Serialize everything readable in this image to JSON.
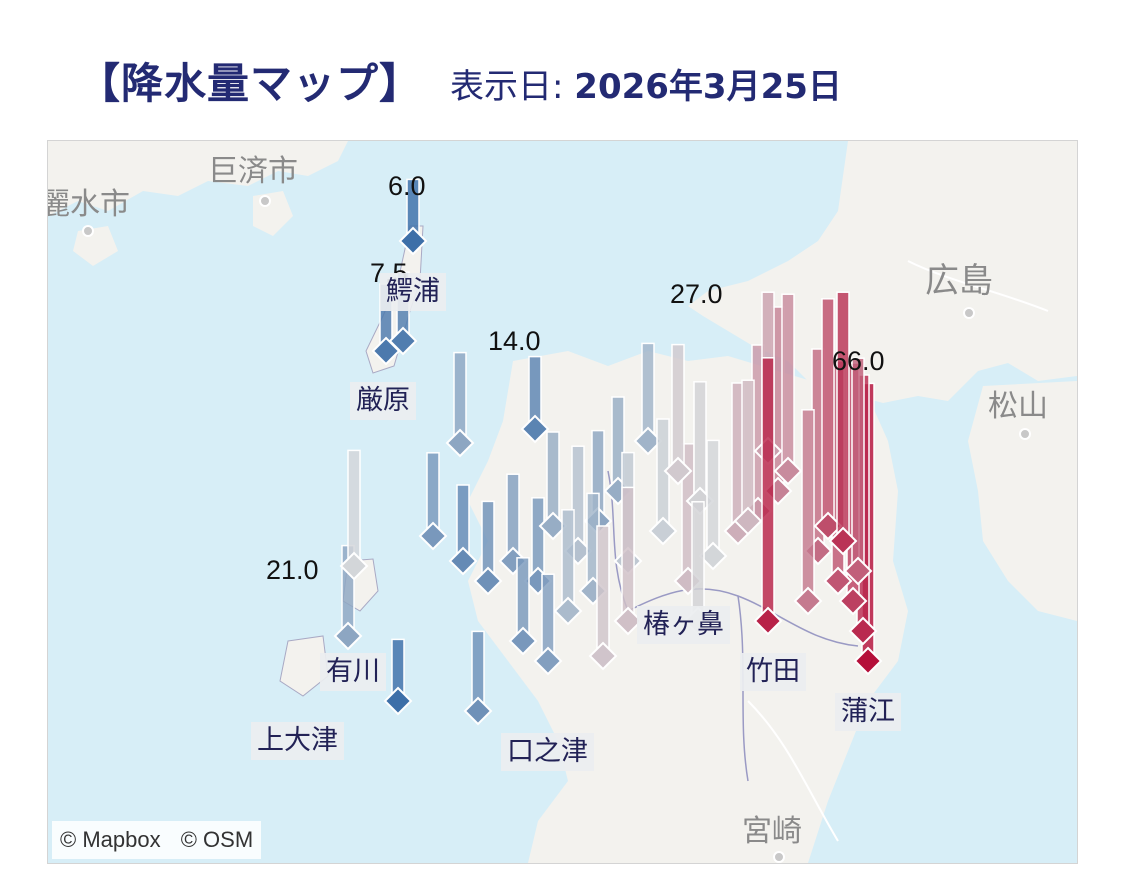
{
  "header": {
    "title": "【降水量マップ】",
    "date_prefix": "表示日:",
    "date_value": "2026年3月25日"
  },
  "map": {
    "copyright_mapbox": "© Mapbox",
    "copyright_osm": "© OSM",
    "city_labels": [
      "巨済市",
      "麗水市",
      "広島",
      "松山",
      "宮崎"
    ],
    "station_labels": [
      "鰐浦",
      "厳原",
      "有川",
      "上大津",
      "口之津",
      "椿ヶ鼻",
      "竹田",
      "蒲江"
    ],
    "value_labels": [
      "6.0",
      "7.5",
      "14.0",
      "27.0",
      "66.0",
      "21.0"
    ],
    "colors": {
      "low": "#3d6fa8",
      "mid": "#d3d6d9",
      "high": "#b5103a",
      "sea": "#d7eef7",
      "land": "#f3f2ee"
    }
  },
  "chart_data": {
    "type": "scatter",
    "title": "",
    "unit": "",
    "labeled_values": [
      {
        "station": "鰐浦",
        "value": 6.0
      },
      {
        "station": "厳原",
        "value": 7.5
      },
      {
        "station": "有川",
        "value": 21.0
      },
      {
        "station": "口之津",
        "value": 14.0
      },
      {
        "station": "椿ヶ鼻",
        "value": 27.0
      },
      {
        "station": "蒲江",
        "value": 66.0
      }
    ],
    "marker_values": [
      6.0,
      7.5,
      14.0,
      9.0,
      6.0,
      14.0,
      12.0,
      10.0,
      11.0,
      13.0,
      12.0,
      15.0,
      18.0,
      14.0,
      15.0,
      27.0,
      16.0,
      20.0,
      24.0,
      22.0,
      21.0,
      30.0,
      35.0,
      40.0,
      66.0,
      60.0,
      55.0,
      50.0,
      45.0,
      52.0,
      38.0,
      33.0,
      28.0,
      19.0,
      17.0,
      21.0,
      8.0,
      16.0,
      13.0,
      25.0,
      12.0,
      11.0,
      26.0,
      22.0,
      42.0,
      48.0,
      58.0,
      62.0
    ],
    "color_scale": {
      "min": 6.0,
      "max": 66.0
    }
  }
}
